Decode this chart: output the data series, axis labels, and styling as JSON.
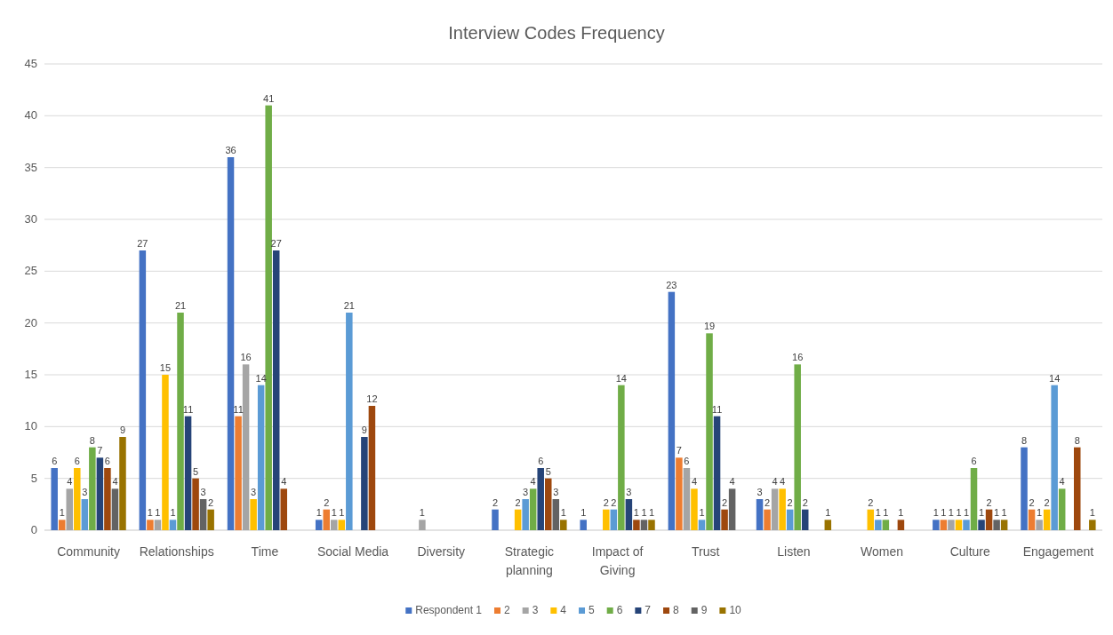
{
  "chart_data": {
    "type": "bar",
    "title": "Interview Codes Frequency",
    "categories": [
      "Community",
      "Relationships",
      "Time",
      "Social Media",
      "Diversity",
      "Strategic planning",
      "Impact of Giving",
      "Trust",
      "Listen",
      "Women",
      "Culture",
      "Engagement"
    ],
    "series": [
      {
        "name": "Respondent 1",
        "color": "#4472c4",
        "values": [
          6,
          27,
          36,
          1,
          null,
          2,
          1,
          23,
          3,
          null,
          1,
          8
        ]
      },
      {
        "name": "2",
        "color": "#ed7d31",
        "values": [
          1,
          1,
          11,
          2,
          null,
          null,
          null,
          7,
          2,
          null,
          1,
          2
        ]
      },
      {
        "name": "3",
        "color": "#a5a5a5",
        "values": [
          4,
          1,
          16,
          1,
          1,
          null,
          null,
          6,
          4,
          null,
          1,
          1
        ]
      },
      {
        "name": "4",
        "color": "#ffc000",
        "values": [
          6,
          15,
          3,
          1,
          null,
          2,
          2,
          4,
          4,
          2,
          1,
          2
        ]
      },
      {
        "name": "5",
        "color": "#5b9bd5",
        "values": [
          3,
          1,
          14,
          21,
          null,
          3,
          2,
          1,
          2,
          1,
          1,
          14
        ]
      },
      {
        "name": "6",
        "color": "#70ad47",
        "values": [
          8,
          21,
          41,
          null,
          null,
          4,
          14,
          19,
          16,
          1,
          6,
          4
        ]
      },
      {
        "name": "7",
        "color": "#264478",
        "values": [
          7,
          11,
          27,
          9,
          null,
          6,
          3,
          11,
          2,
          null,
          1,
          null
        ]
      },
      {
        "name": "8",
        "color": "#9e480e",
        "values": [
          6,
          5,
          4,
          12,
          null,
          5,
          1,
          2,
          null,
          1,
          2,
          8
        ]
      },
      {
        "name": "9",
        "color": "#636363",
        "values": [
          4,
          3,
          null,
          null,
          null,
          3,
          1,
          4,
          null,
          null,
          1,
          null
        ]
      },
      {
        "name": "10",
        "color": "#997300",
        "values": [
          9,
          2,
          null,
          null,
          null,
          1,
          1,
          null,
          1,
          null,
          1,
          1
        ]
      }
    ],
    "ylim": [
      0,
      45
    ],
    "yticks": [
      0,
      5,
      10,
      15,
      20,
      25,
      30,
      35,
      40,
      45
    ],
    "grid": "y",
    "legend": "bottom",
    "data_labels": true
  }
}
